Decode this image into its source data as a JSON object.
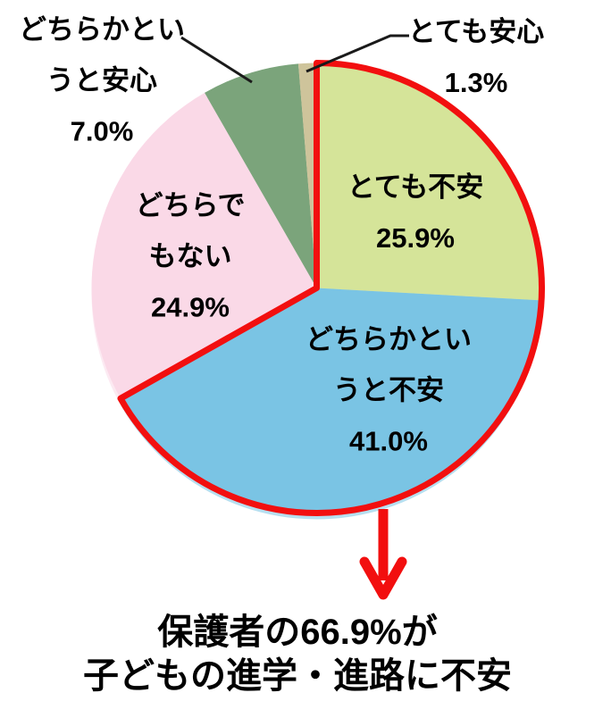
{
  "chart_data": {
    "type": "pie",
    "title": "",
    "unit": "%",
    "start_angle_deg": 0,
    "direction": "clockwise",
    "legend": "none",
    "background": "#FFFFFF",
    "slices": [
      {
        "label": "とても不安",
        "lines": [
          "とても不安"
        ],
        "value": 25.9,
        "pct_label": "25.9%",
        "color": "#D5E499",
        "label_placement": "inside"
      },
      {
        "label": "どちらかというと不安",
        "lines": [
          "どちらかとい",
          "うと不安"
        ],
        "value": 41.0,
        "pct_label": "41.0%",
        "color": "#7AC4E4",
        "label_placement": "inside"
      },
      {
        "label": "どちらでもない",
        "lines": [
          "どちらで",
          "もない"
        ],
        "value": 24.9,
        "pct_label": "24.9%",
        "color": "#FAD9E7",
        "label_placement": "inside"
      },
      {
        "label": "どちらかというと安心",
        "lines": [
          "どちらかとい",
          "うと安心"
        ],
        "value": 7.0,
        "pct_label": "7.0%",
        "color": "#7BA47B",
        "label_placement": "outside-callout"
      },
      {
        "label": "とても安心",
        "lines": [
          "とても安心"
        ],
        "value": 1.3,
        "pct_label": "1.3%",
        "color": "#CEC49B",
        "label_placement": "outside-callout"
      }
    ],
    "highlight": {
      "slice_indexes": [
        0,
        1
      ],
      "total_value": 66.9,
      "color": "#F20F0F",
      "style": "thick-red-outline-with-down-arrow"
    },
    "callout_line_color": "#1A1A1A",
    "annotation": {
      "caption_lines": [
        "保護者の66.9%が",
        "子どもの進学・進路に不安"
      ]
    }
  }
}
